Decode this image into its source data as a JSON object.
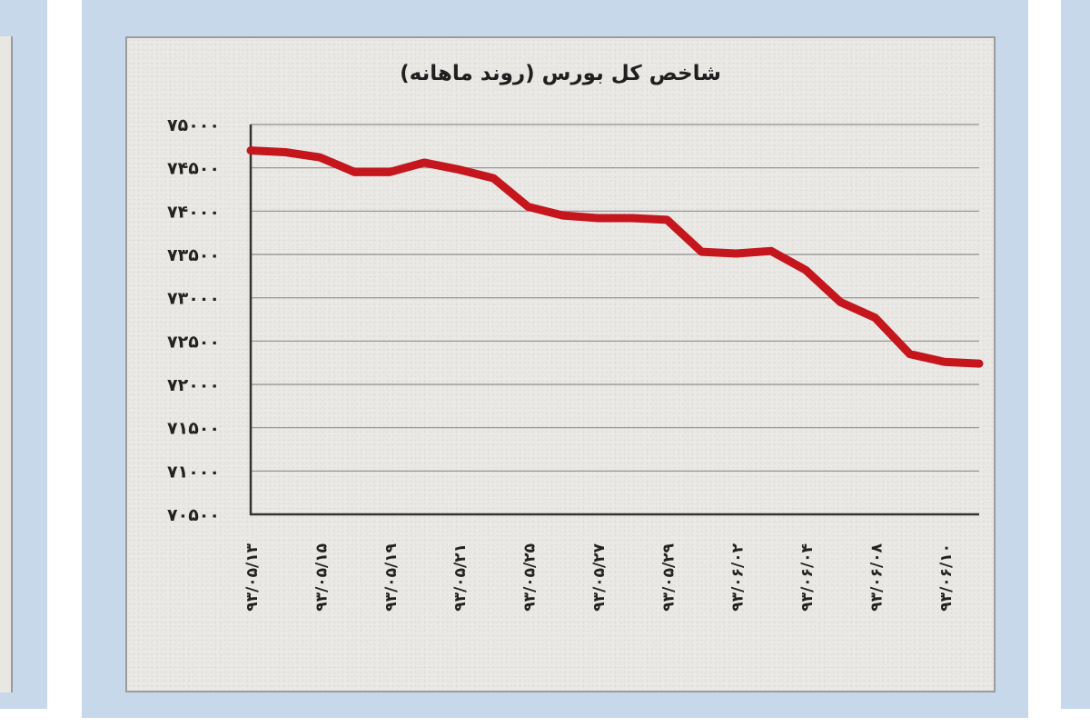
{
  "chart_data": {
    "type": "line",
    "title": "شاخص کل بورس (روند ماهانه)",
    "xlabel": "",
    "ylabel": "",
    "ylim": [
      70500,
      75000
    ],
    "y_ticks": [
      75000,
      74500,
      74000,
      73500,
      73000,
      72500,
      72000,
      71500,
      71000,
      70500
    ],
    "y_tick_labels": [
      "۷۵۰۰۰",
      "۷۴۵۰۰",
      "۷۴۰۰۰",
      "۷۳۵۰۰",
      "۷۳۰۰۰",
      "۷۲۵۰۰",
      "۷۲۰۰۰",
      "۷۱۵۰۰",
      "۷۱۰۰۰",
      "۷۰۵۰۰"
    ],
    "categories": [
      "۹۳/۰۵/۱۳",
      "۹۳/۰۵/۱۵",
      "۹۳/۰۵/۱۹",
      "۹۳/۰۵/۲۱",
      "۹۳/۰۵/۲۵",
      "۹۳/۰۵/۲۷",
      "۹۳/۰۵/۲۹",
      "۹۳/۰۶/۰۲",
      "۹۳/۰۶/۰۴",
      "۹۳/۰۶/۰۸",
      "۹۳/۰۶/۱۰"
    ],
    "x": [
      0,
      0.5,
      1,
      1.5,
      2,
      2.5,
      3,
      3.5,
      4,
      4.5,
      5,
      5.5,
      6,
      6.5,
      7,
      7.5,
      8,
      8.5,
      9,
      9.5,
      10,
      10.5
    ],
    "series": [
      {
        "color": "#c4161c",
        "values": [
          74700,
          74680,
          74620,
          74450,
          74450,
          74560,
          74480,
          74380,
          74050,
          73950,
          73920,
          73920,
          73900,
          73530,
          73510,
          73540,
          73320,
          72950,
          72770,
          72350,
          72260,
          72240
        ]
      }
    ],
    "grid": true,
    "legend": "none"
  }
}
